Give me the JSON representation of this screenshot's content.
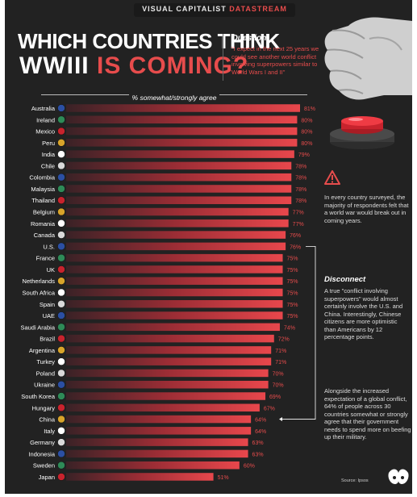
{
  "header": {
    "brand_main": "VISUAL CAPITALIST ",
    "brand_accent": "DATASTREAM",
    "title_line1": "WHICH COUNTRIES THINK",
    "title_line2a": "WWIII ",
    "title_line2b": "IS COMING?"
  },
  "question": {
    "heading": "Question",
    "text": "\"I expect in the next 25 years we could see another world conflict involving superpowers similar to World Wars I and II\""
  },
  "notes": {
    "summary": "In every country surveyed, the majority of respondents felt that a world war would break out in coming years.",
    "disconnect_heading": "Disconnect",
    "disconnect_text": "A true \"conflict involving superpowers\" would almost certainly involve the U.S. and China. Interestingly, Chinese citizens are more optimistic than Americans by 12 percentage points.",
    "spending": "Alongside the increased expectation of a global conflict, 64% of people across 30 countries somewhat or strongly agree that their government needs to spend more on beefing up their military."
  },
  "source": "Source: Ipsos",
  "icons": [
    "fist-icon",
    "red-button-icon",
    "warning-icon",
    "visual-capitalist-logo-icon",
    "flag-icon"
  ],
  "colors": {
    "background": "#222222",
    "accent": "#e74c4c",
    "bar_dark": "#3a2226",
    "bar_bright": "#e8474c"
  },
  "chart_data": {
    "type": "bar",
    "orientation": "horizontal",
    "axis_label": "% somewhat/strongly agree",
    "categories": [
      "Australia",
      "Ireland",
      "Mexico",
      "Peru",
      "India",
      "Chile",
      "Colombia",
      "Malaysia",
      "Thailand",
      "Belgium",
      "Romania",
      "Canada",
      "U.S.",
      "France",
      "UK",
      "Netherlands",
      "South Africa",
      "Spain",
      "UAE",
      "Saudi Arabia",
      "Brazil",
      "Argentina",
      "Turkey",
      "Poland",
      "Ukraine",
      "South Korea",
      "Hungary",
      "China",
      "Italy",
      "Germany",
      "Indonesia",
      "Sweden",
      "Japan"
    ],
    "values": [
      81,
      80,
      80,
      80,
      79,
      78,
      78,
      78,
      78,
      77,
      77,
      76,
      76,
      75,
      75,
      75,
      75,
      75,
      75,
      74,
      72,
      71,
      71,
      70,
      70,
      69,
      67,
      64,
      64,
      63,
      63,
      60,
      51
    ],
    "labels": [
      "81%",
      "80%",
      "80%",
      "80%",
      "79%",
      "78%",
      "78%",
      "78%",
      "78%",
      "77%",
      "77%",
      "76%",
      "76%",
      "75%",
      "75%",
      "75%",
      "75%",
      "75%",
      "75%",
      "74%",
      "72%",
      "71%",
      "71%",
      "70%",
      "70%",
      "69%",
      "67%",
      "64%",
      "64%",
      "63%",
      "63%",
      "60%",
      "51%"
    ],
    "highlighted": [
      "U.S.",
      "China"
    ],
    "xlim": [
      0,
      81
    ]
  }
}
